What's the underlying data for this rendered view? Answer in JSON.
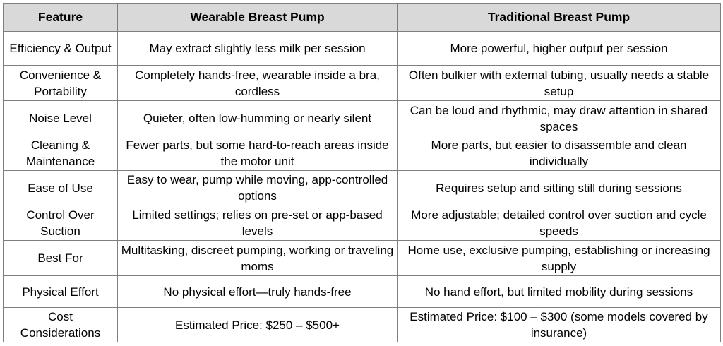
{
  "table": {
    "headers": [
      "Feature",
      "Wearable Breast Pump",
      "Traditional Breast Pump"
    ],
    "rows": [
      {
        "feature": "Efficiency & Output",
        "wearable": "May extract slightly less milk per session",
        "traditional": "More powerful, higher output per session"
      },
      {
        "feature": "Convenience & Portability",
        "wearable": "Completely hands-free, wearable inside a bra, cordless",
        "traditional": "Often bulkier with external tubing, usually needs a stable setup"
      },
      {
        "feature": "Noise Level",
        "wearable": "Quieter, often low-humming or nearly silent",
        "traditional": "Can be loud and rhythmic, may draw attention in shared spaces"
      },
      {
        "feature": "Cleaning & Maintenance",
        "wearable": "Fewer parts, but some hard-to-reach areas inside the motor unit",
        "traditional": "More parts, but easier to disassemble and clean individually"
      },
      {
        "feature": "Ease of Use",
        "wearable": "Easy to wear, pump while moving, app-controlled options",
        "traditional": "Requires setup and sitting still during sessions"
      },
      {
        "feature": "Control Over Suction",
        "wearable": "Limited settings; relies on pre-set or app-based levels",
        "traditional": "More adjustable; detailed control over suction and cycle speeds"
      },
      {
        "feature": "Best For",
        "wearable": "Multitasking, discreet pumping, working or traveling moms",
        "traditional": "Home use, exclusive pumping, establishing or increasing supply"
      },
      {
        "feature": "Physical Effort",
        "wearable": "No physical effort—truly hands-free",
        "traditional": "No hand effort, but limited mobility during sessions"
      },
      {
        "feature": "Cost Considerations",
        "wearable": "Estimated Price: $250 – $500+",
        "traditional": "Estimated Price: $100 – $300 (some models covered by insurance)"
      }
    ]
  }
}
